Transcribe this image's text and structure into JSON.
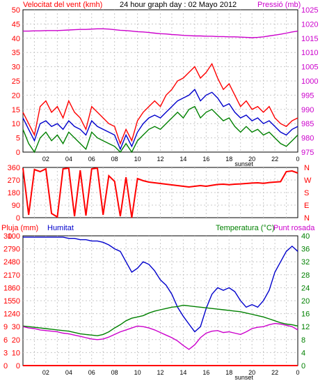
{
  "header": {
    "wind_title": "Velocitat del vent (kmh)",
    "graph_title": "24 hour graph day : 02 Mayo 2012",
    "pressure_title": "Pressió (mb)"
  },
  "footer": {
    "rain_title": "Pluja (mm)",
    "humidity_title": "Humitat",
    "temp_title": "Temperatura (°C)",
    "dew_title": "Punt rosada"
  },
  "colors": {
    "wind_gust": "#ff0000",
    "wind_avg": "#0000cc",
    "wind_low": "#008000",
    "pressure": "#cc00cc",
    "direction": "#ff0000",
    "humidity": "#0000cc",
    "temperature": "#008000",
    "dewpoint": "#cc00cc",
    "rain": "#ff0000"
  },
  "time_axis": {
    "labels": [
      "02",
      "04",
      "06",
      "08",
      "10",
      "12",
      "14",
      "16",
      "18",
      "20",
      "22",
      "0"
    ],
    "sunset_label": "sunset"
  },
  "chart_data": [
    {
      "type": "line",
      "title": "24 hour graph day : 02 Mayo 2012",
      "y_left_label": "Velocitat del vent (kmh)",
      "y_right_label": "Pressió (mb)",
      "y_left_range": [
        0,
        50
      ],
      "y_left_ticks": [
        "0",
        "5",
        "10",
        "15",
        "20",
        "25",
        "30",
        "35",
        "40",
        "45",
        "50"
      ],
      "y_right_range": [
        975,
        1025
      ],
      "y_right_ticks": [
        "975",
        "980",
        "985",
        "990",
        "995",
        "1000",
        "1005",
        "1010",
        "1015",
        "1020",
        "1025"
      ],
      "x": [
        0,
        0.5,
        1,
        1.5,
        2,
        2.5,
        3,
        3.5,
        4,
        4.5,
        5,
        5.5,
        6,
        6.5,
        7,
        7.5,
        8,
        8.5,
        9,
        9.5,
        10,
        10.5,
        11,
        11.5,
        12,
        12.5,
        13,
        13.5,
        14,
        14.5,
        15,
        15.5,
        16,
        16.5,
        17,
        17.5,
        18,
        18.5,
        19,
        19.5,
        20,
        20.5,
        21,
        21.5,
        22,
        22.5,
        23,
        23.5,
        24
      ],
      "series": [
        {
          "name": "gust",
          "values": [
            14,
            10,
            6,
            16,
            18,
            14,
            16,
            12,
            18,
            14,
            12,
            8,
            16,
            14,
            12,
            10,
            9,
            3,
            8,
            4,
            11,
            14,
            16,
            18,
            16,
            20,
            22,
            25,
            26,
            28,
            30,
            26,
            28,
            31,
            26,
            22,
            24,
            20,
            16,
            18,
            15,
            16,
            14,
            16,
            12,
            10,
            9,
            11,
            12
          ]
        },
        {
          "name": "average",
          "values": [
            12,
            8,
            4,
            10,
            11,
            9,
            10,
            8,
            11,
            9,
            8,
            6,
            11,
            9,
            8,
            7,
            6,
            1,
            6,
            2,
            7,
            10,
            12,
            13,
            12,
            14,
            16,
            18,
            19,
            20,
            22,
            18,
            20,
            21,
            19,
            16,
            17,
            14,
            12,
            13,
            11,
            12,
            10,
            11,
            9,
            7,
            6,
            8,
            9
          ]
        },
        {
          "name": "low",
          "values": [
            8,
            3,
            0,
            5,
            7,
            4,
            6,
            3,
            7,
            5,
            3,
            1,
            7,
            5,
            4,
            3,
            2,
            0,
            3,
            0,
            4,
            6,
            8,
            9,
            8,
            10,
            12,
            14,
            12,
            15,
            16,
            12,
            14,
            15,
            13,
            11,
            12,
            9,
            7,
            9,
            7,
            8,
            6,
            7,
            5,
            3,
            2,
            4,
            6
          ]
        },
        {
          "name": "pressure",
          "values": [
            1017.5,
            1017.5,
            1017.6,
            1017.6,
            1017.7,
            1017.7,
            1017.7,
            1017.8,
            1017.9,
            1018.0,
            1018.1,
            1018.1,
            1018.2,
            1018.3,
            1018.3,
            1018.2,
            1018.0,
            1017.8,
            1017.7,
            1017.5,
            1017.3,
            1017.2,
            1017.0,
            1016.8,
            1016.6,
            1016.5,
            1016.3,
            1016.2,
            1016.0,
            1015.9,
            1015.8,
            1015.8,
            1015.7,
            1015.7,
            1015.6,
            1015.6,
            1015.5,
            1015.5,
            1015.4,
            1015.3,
            1015.2,
            1015.3,
            1015.5,
            1015.8,
            1016.1,
            1016.4,
            1016.8,
            1017.2,
            1017.5
          ]
        }
      ]
    },
    {
      "type": "line",
      "title": "",
      "y_left_range": [
        0,
        360
      ],
      "y_left_ticks": [
        "0",
        "90",
        "180",
        "270",
        "360"
      ],
      "y_right_ticks": [
        "N",
        "E",
        "S",
        "W",
        "N"
      ],
      "x": [
        0,
        0.5,
        1,
        1.5,
        2,
        2.5,
        3,
        3.5,
        4,
        4.5,
        5,
        5.5,
        6,
        6.5,
        7,
        7.5,
        8,
        8.5,
        9,
        9.5,
        10,
        10.5,
        11,
        11.5,
        12,
        12.5,
        13,
        13.5,
        14,
        14.5,
        15,
        15.5,
        16,
        16.5,
        17,
        17.5,
        18,
        18.5,
        19,
        19.5,
        20,
        20.5,
        21,
        21.5,
        22,
        22.5,
        23,
        23.5,
        24
      ],
      "series": [
        {
          "name": "direction",
          "values": [
            355,
            20,
            345,
            330,
            350,
            30,
            5,
            350,
            355,
            10,
            340,
            15,
            350,
            355,
            20,
            300,
            260,
            10,
            290,
            0,
            280,
            265,
            255,
            250,
            245,
            240,
            235,
            230,
            225,
            220,
            225,
            230,
            225,
            232,
            238,
            240,
            236,
            240,
            242,
            245,
            248,
            250,
            246,
            252,
            255,
            258,
            330,
            335,
            320
          ]
        }
      ]
    },
    {
      "type": "line",
      "title": "",
      "y_left_labels": [
        "Pluja (mm)",
        "Humitat"
      ],
      "y_right_labels": [
        "Temperatura (°C)",
        "Punt rosada"
      ],
      "humidity_range": [
        0,
        100
      ],
      "humidity_ticks": [
        "0",
        "10",
        "20",
        "30",
        "40",
        "50",
        "60",
        "70",
        "80",
        "90",
        "100"
      ],
      "rain_range": [
        0,
        30
      ],
      "rain_ticks": [
        "0",
        "3",
        "6",
        "9",
        "12",
        "15",
        "18",
        "21",
        "24",
        "27",
        "30"
      ],
      "temp_range": [
        0,
        40
      ],
      "temp_ticks": [
        "0",
        "4",
        "8",
        "12",
        "16",
        "20",
        "24",
        "28",
        "32",
        "36",
        "40"
      ],
      "x": [
        0,
        0.5,
        1,
        1.5,
        2,
        2.5,
        3,
        3.5,
        4,
        4.5,
        5,
        5.5,
        6,
        6.5,
        7,
        7.5,
        8,
        8.5,
        9,
        9.5,
        10,
        10.5,
        11,
        11.5,
        12,
        12.5,
        13,
        13.5,
        14,
        14.5,
        15,
        15.5,
        16,
        16.5,
        17,
        17.5,
        18,
        18.5,
        19,
        19.5,
        20,
        20.5,
        21,
        21.5,
        22,
        22.5,
        23,
        23.5,
        24
      ],
      "series": [
        {
          "name": "humidity",
          "values": [
            99,
            99,
            99,
            99,
            99,
            99,
            99,
            99,
            98,
            98,
            97,
            97,
            96,
            96,
            95,
            93,
            90,
            88,
            80,
            72,
            75,
            80,
            78,
            73,
            66,
            62,
            55,
            45,
            38,
            32,
            26,
            30,
            44,
            55,
            60,
            58,
            60,
            57,
            50,
            45,
            47,
            45,
            50,
            58,
            72,
            80,
            88,
            92,
            88
          ]
        },
        {
          "name": "temperature",
          "values": [
            12.2,
            12.0,
            11.8,
            11.6,
            11.4,
            11.2,
            11.0,
            10.8,
            10.6,
            10.2,
            9.8,
            9.6,
            9.4,
            9.2,
            9.6,
            10.4,
            11.6,
            12.6,
            13.8,
            14.6,
            15.0,
            15.4,
            16.2,
            16.8,
            17.2,
            17.6,
            18.0,
            18.2,
            18.6,
            18.4,
            18.2,
            18.0,
            17.8,
            17.6,
            17.4,
            17.2,
            17.0,
            16.8,
            16.6,
            16.2,
            15.8,
            15.4,
            15.0,
            14.4,
            13.8,
            13.2,
            12.8,
            12.6,
            12.2
          ]
        },
        {
          "name": "dewpoint",
          "values": [
            12.0,
            11.6,
            11.4,
            11.0,
            10.8,
            10.6,
            10.4,
            10.0,
            9.8,
            9.4,
            9.0,
            8.6,
            8.2,
            8.0,
            8.2,
            8.8,
            9.6,
            10.4,
            11.0,
            11.6,
            12.2,
            12.0,
            11.6,
            11.0,
            10.2,
            9.4,
            8.6,
            7.6,
            6.2,
            5.0,
            6.4,
            8.6,
            10.0,
            10.6,
            10.8,
            10.2,
            10.4,
            10.0,
            9.6,
            10.4,
            11.4,
            11.8,
            12.0,
            12.6,
            13.0,
            12.8,
            12.4,
            12.0,
            11.0
          ]
        },
        {
          "name": "rain",
          "values": [
            0,
            0,
            0,
            0,
            0,
            0,
            0,
            0,
            0,
            0,
            0,
            0,
            0,
            0,
            0,
            0,
            0,
            0,
            0,
            0,
            0,
            0,
            0,
            0,
            0,
            0,
            0,
            0,
            0,
            0,
            0,
            0,
            0,
            0,
            0,
            0,
            0,
            0,
            0,
            0,
            0,
            0,
            0,
            0,
            0,
            0,
            0,
            0,
            0
          ]
        }
      ]
    }
  ]
}
